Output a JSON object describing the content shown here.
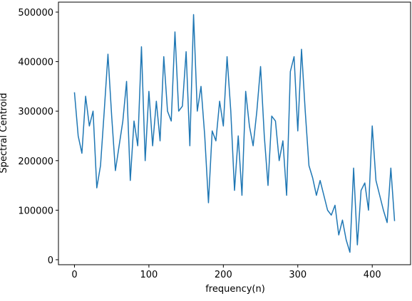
{
  "chart_data": {
    "type": "line",
    "xlabel": "frequency(n)",
    "ylabel": "Spectral Centroid",
    "x": [
      0,
      5,
      10,
      15,
      20,
      25,
      30,
      35,
      40,
      45,
      50,
      55,
      60,
      65,
      70,
      75,
      80,
      85,
      90,
      95,
      100,
      105,
      110,
      115,
      120,
      125,
      130,
      135,
      140,
      145,
      150,
      155,
      160,
      165,
      170,
      175,
      180,
      185,
      190,
      195,
      200,
      205,
      210,
      215,
      220,
      225,
      230,
      235,
      240,
      245,
      250,
      255,
      260,
      265,
      270,
      275,
      280,
      285,
      290,
      295,
      300,
      305,
      310,
      315,
      320,
      325,
      330,
      335,
      340,
      345,
      350,
      355,
      360,
      365,
      370,
      375,
      380,
      385,
      390,
      395,
      400,
      405,
      410,
      415,
      420,
      425,
      430
    ],
    "series": [
      {
        "color": "#1f77b4",
        "values": [
          338000,
          250000,
          215000,
          330000,
          270000,
          300000,
          145000,
          190000,
          300000,
          415000,
          290000,
          180000,
          230000,
          280000,
          360000,
          160000,
          280000,
          230000,
          430000,
          200000,
          340000,
          230000,
          320000,
          240000,
          410000,
          300000,
          280000,
          460000,
          300000,
          310000,
          420000,
          230000,
          495000,
          300000,
          350000,
          250000,
          115000,
          260000,
          240000,
          320000,
          270000,
          410000,
          300000,
          140000,
          250000,
          130000,
          340000,
          270000,
          230000,
          300000,
          390000,
          250000,
          150000,
          290000,
          280000,
          200000,
          240000,
          130000,
          380000,
          410000,
          260000,
          425000,
          300000,
          190000,
          165000,
          130000,
          160000,
          130000,
          100000,
          90000,
          110000,
          50000,
          80000,
          40000,
          15000,
          185000,
          30000,
          140000,
          155000,
          100000,
          270000,
          160000,
          130000,
          100000,
          75000,
          185000,
          78000
        ]
      }
    ],
    "xlim": [
      -21.5,
      451.5
    ],
    "ylim": [
      -10100,
      520100
    ],
    "xticks": [
      0,
      100,
      200,
      300,
      400
    ],
    "yticks": [
      0,
      100000,
      200000,
      300000,
      400000,
      500000
    ]
  }
}
